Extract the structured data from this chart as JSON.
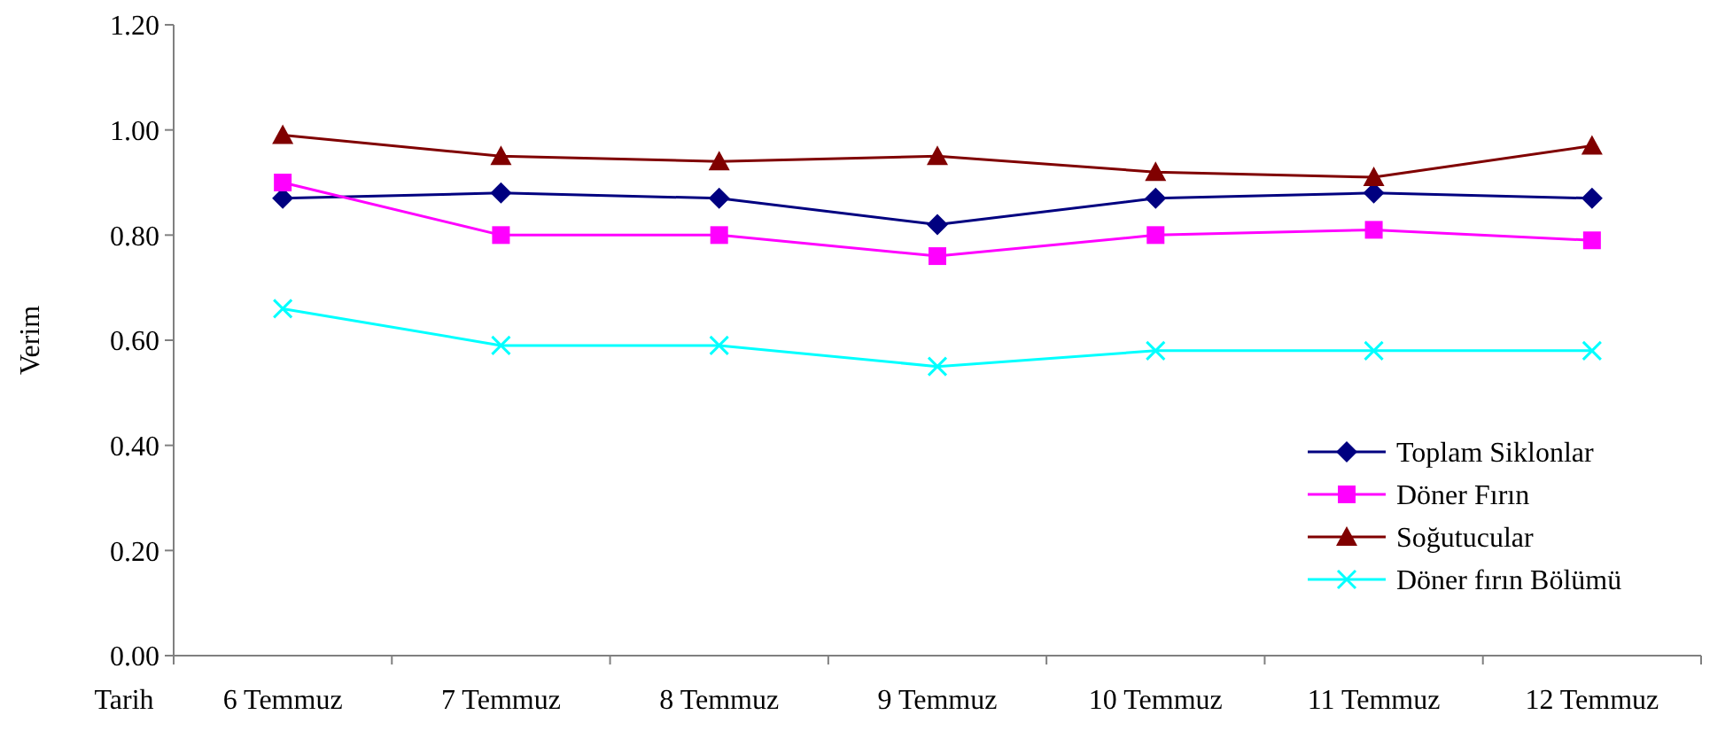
{
  "chart_data": {
    "type": "line",
    "ylabel": "Verim",
    "xlabel": "Tarih",
    "categories": [
      "6 Temmuz",
      "7 Temmuz",
      "8 Temmuz",
      "9 Temmuz",
      "10 Temmuz",
      "11 Temmuz",
      "12 Temmuz"
    ],
    "series": [
      {
        "name": "Toplam Siklonlar",
        "color": "#000080",
        "marker": "diamond",
        "values": [
          0.87,
          0.88,
          0.87,
          0.82,
          0.87,
          0.88,
          0.87
        ]
      },
      {
        "name": "Döner Fırın",
        "color": "#ff00ff",
        "marker": "square",
        "values": [
          0.9,
          0.8,
          0.8,
          0.76,
          0.8,
          0.81,
          0.79
        ]
      },
      {
        "name": "Soğutucular",
        "color": "#800000",
        "marker": "triangle",
        "values": [
          0.99,
          0.95,
          0.94,
          0.95,
          0.92,
          0.91,
          0.97
        ]
      },
      {
        "name": "Döner fırın Bölümü",
        "color": "#00ffff",
        "marker": "cross",
        "values": [
          0.66,
          0.59,
          0.59,
          0.55,
          0.58,
          0.58,
          0.58
        ]
      }
    ],
    "ylim": [
      0,
      1.2
    ],
    "yticks": [
      {
        "value": 0,
        "label": "0.00"
      },
      {
        "value": 0.2,
        "label": "0.20"
      },
      {
        "value": 0.4,
        "label": "0.40"
      },
      {
        "value": 0.6,
        "label": "0.60"
      },
      {
        "value": 0.8,
        "label": "0.80"
      },
      {
        "value": 1,
        "label": "1.00"
      },
      {
        "value": 1.2,
        "label": "1.20"
      }
    ],
    "grid": false,
    "legend": "bottom right",
    "line_style": "solid"
  }
}
